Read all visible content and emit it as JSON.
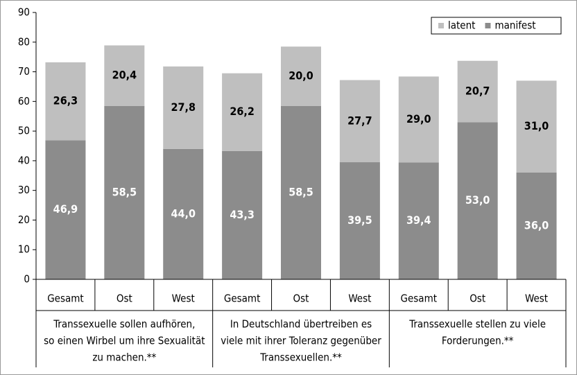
{
  "chart_data": {
    "type": "stacked_bar",
    "categories": [
      "Gesamt",
      "Ost",
      "West",
      "Gesamt",
      "Ost",
      "West",
      "Gesamt",
      "Ost",
      "West"
    ],
    "groups": [
      {
        "label_lines": [
          "Transsexuelle sollen aufhören,",
          "so einen Wirbel um ihre Sexualität",
          "zu machen.**"
        ]
      },
      {
        "label_lines": [
          "In Deutschland übertreiben es",
          "viele mit ihrer Toleranz gegenüber",
          "Transsexuellen.**"
        ]
      },
      {
        "label_lines": [
          "Transsexuelle stellen zu viele",
          "Forderungen.**"
        ]
      }
    ],
    "series": [
      {
        "name": "latent",
        "color": "#bfbfbf",
        "label_color": "#000000",
        "values": [
          26.3,
          20.4,
          27.8,
          26.2,
          20.0,
          27.7,
          29.0,
          20.7,
          31.0
        ],
        "value_labels": [
          "26,3",
          "20,4",
          "27,8",
          "26,2",
          "20,0",
          "27,7",
          "29,0",
          "20,7",
          "31,0"
        ]
      },
      {
        "name": "manifest",
        "color": "#8c8c8c",
        "label_color": "#ffffff",
        "values": [
          46.9,
          58.5,
          44.0,
          43.3,
          58.5,
          39.5,
          39.4,
          53.0,
          36.0
        ],
        "value_labels": [
          "46,9",
          "58,5",
          "44,0",
          "43,3",
          "58,5",
          "39,5",
          "39,4",
          "53,0",
          "36,0"
        ]
      }
    ],
    "ylim": [
      0,
      90
    ],
    "yticks": [
      0,
      10,
      20,
      30,
      40,
      50,
      60,
      70,
      80,
      90
    ],
    "legend": "top-right"
  }
}
